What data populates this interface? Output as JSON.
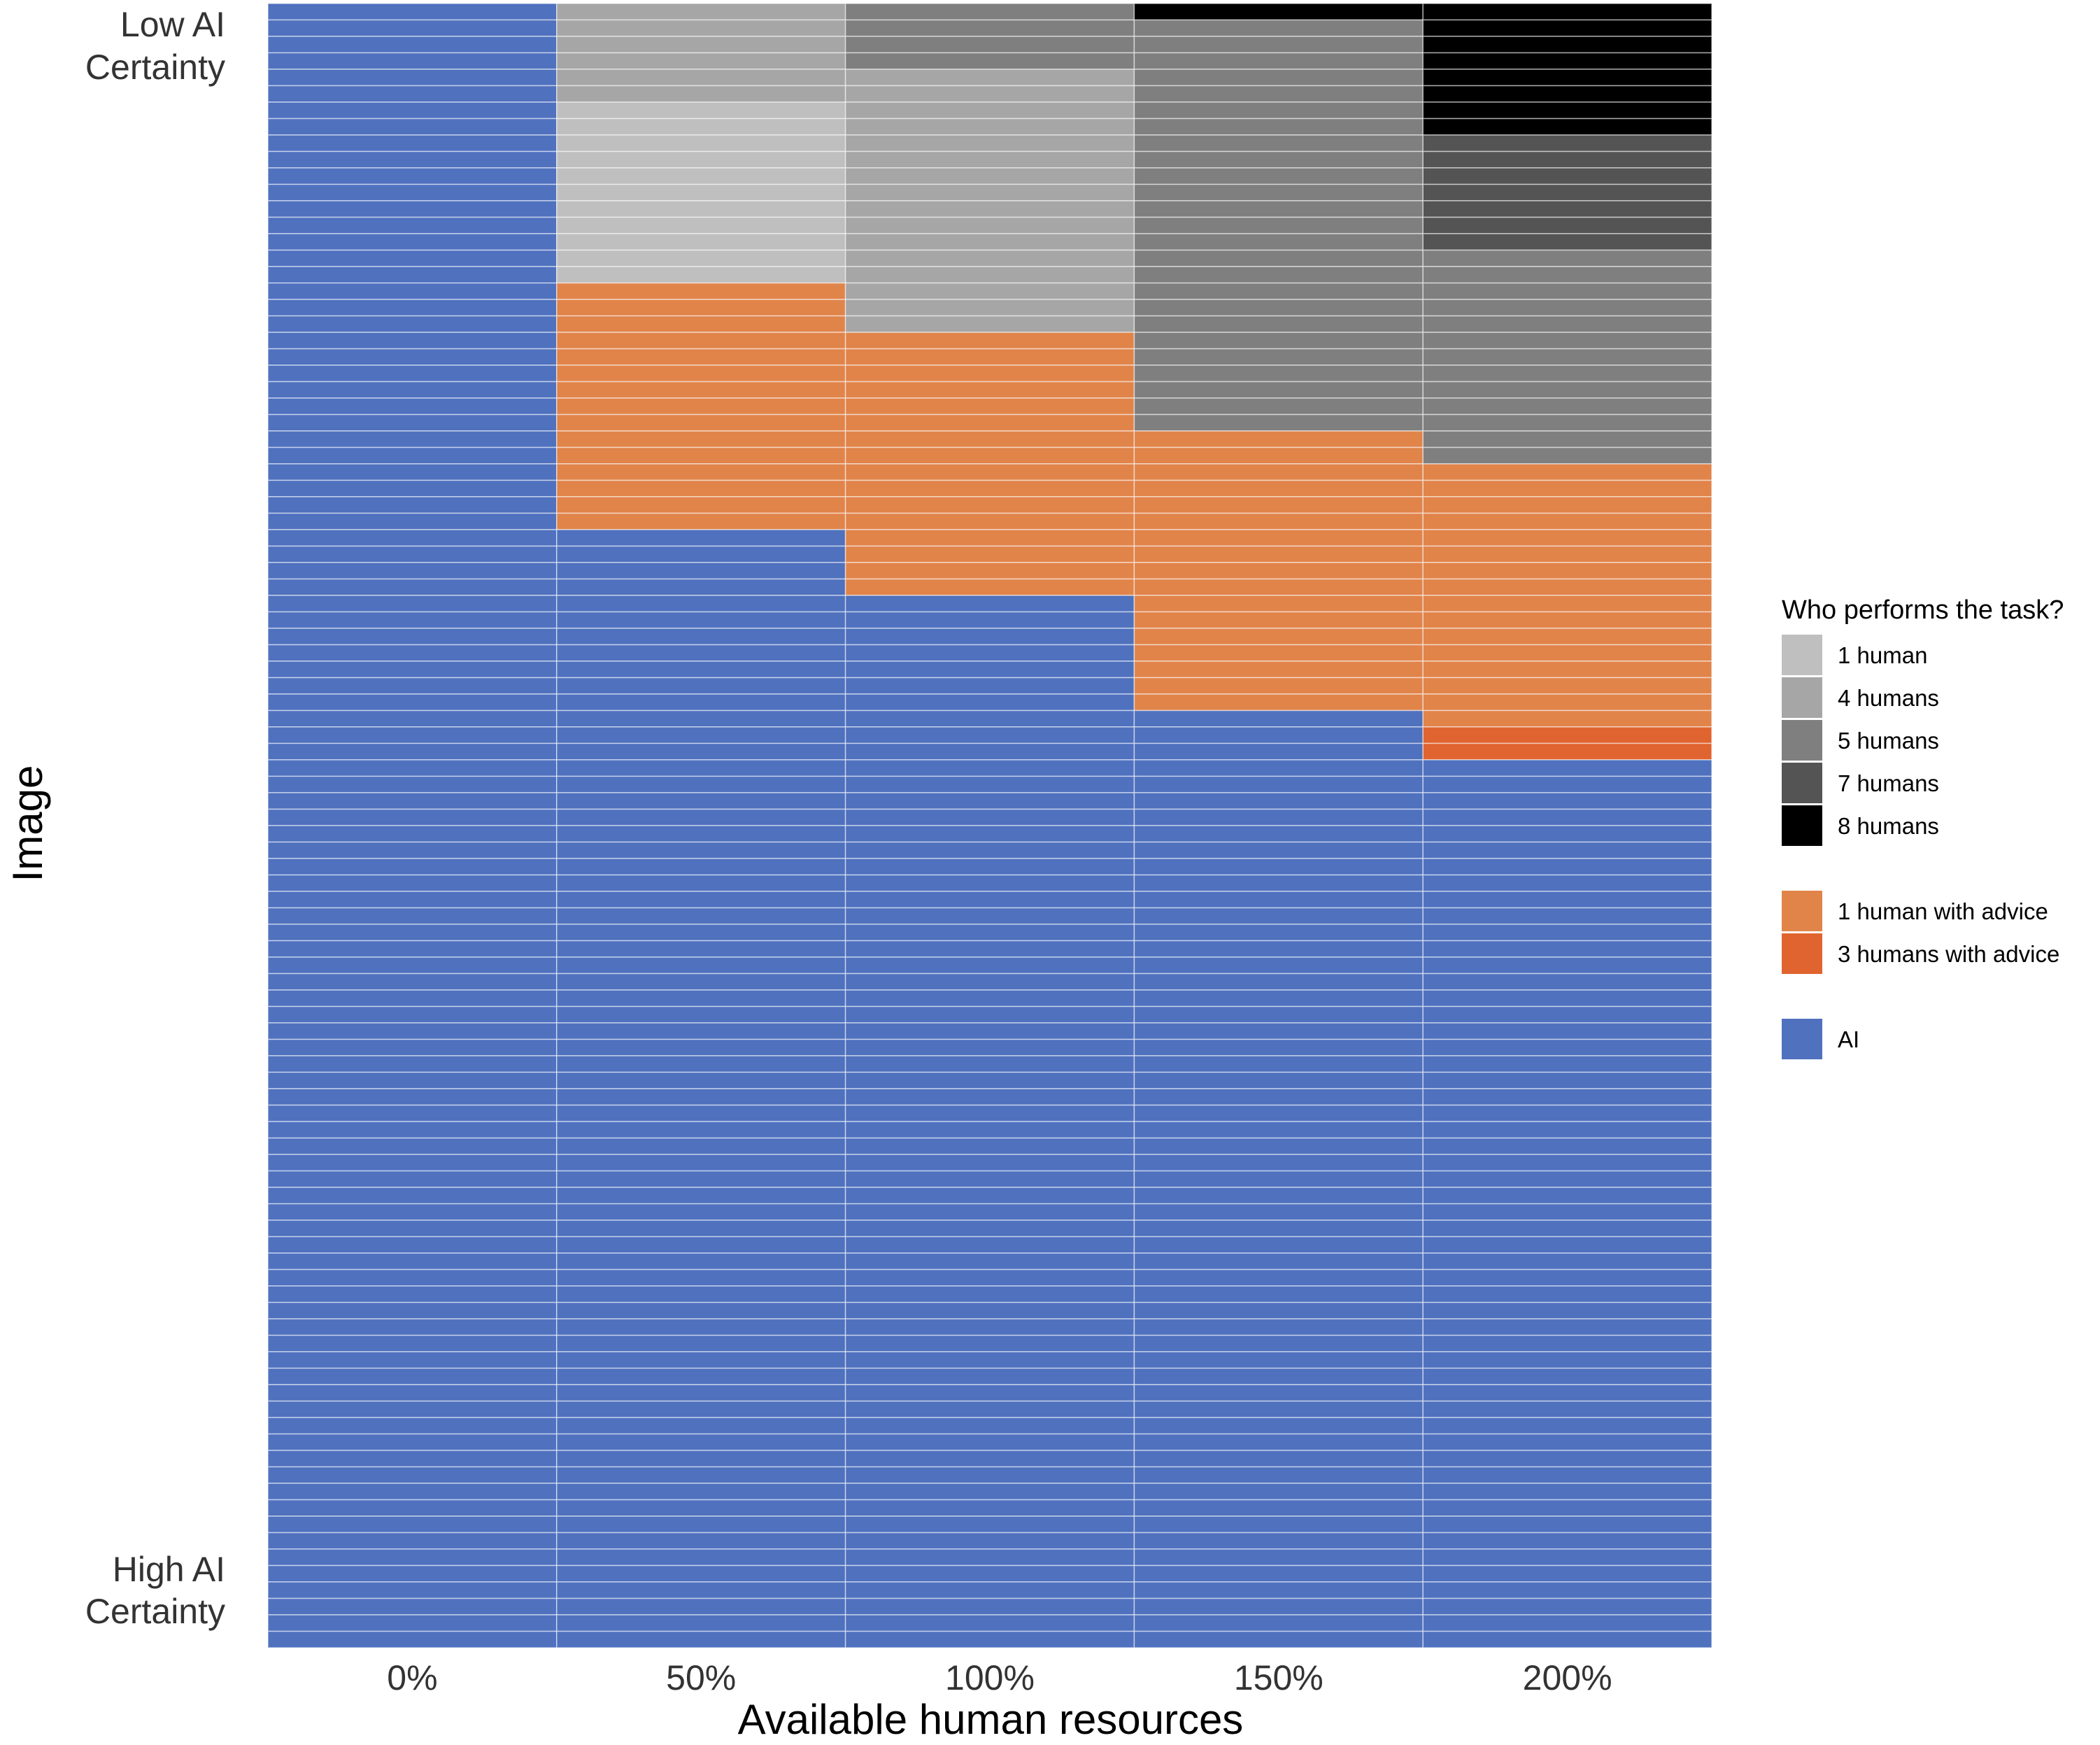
{
  "chart_data": {
    "type": "heatmap",
    "title": "",
    "xlabel": "Available human resources",
    "ylabel": "Image",
    "categories": [
      "0%",
      "50%",
      "100%",
      "150%",
      "200%"
    ],
    "y_tick_labels": {
      "top": [
        "Low AI",
        "Certainty"
      ],
      "bottom": [
        "High AI",
        "Certainty"
      ]
    },
    "row_count": 100,
    "grid": false,
    "legend": {
      "title": "Who performs the task?",
      "placement": "right",
      "groups": [
        [
          {
            "key": "h1",
            "label": "1 human",
            "color": "#BFBFBF"
          },
          {
            "key": "h4",
            "label": "4 humans",
            "color": "#A6A6A6"
          },
          {
            "key": "h5",
            "label": "5 humans",
            "color": "#7F7F7F"
          },
          {
            "key": "h7",
            "label": "7 humans",
            "color": "#545454"
          },
          {
            "key": "h8",
            "label": "8 humans",
            "color": "#000000"
          }
        ],
        [
          {
            "key": "a1",
            "label": "1 human with advice",
            "color": "#E0844A"
          },
          {
            "key": "a3",
            "label": "3 humans with advice",
            "color": "#E0642F"
          }
        ],
        [
          {
            "key": "ai",
            "label": "AI",
            "color": "#4F71BE"
          }
        ]
      ]
    },
    "series": [
      {
        "category": "0%",
        "segments": [
          {
            "key": "ai",
            "from": 1,
            "to": 100
          }
        ]
      },
      {
        "category": "50%",
        "segments": [
          {
            "key": "h4",
            "from": 1,
            "to": 6
          },
          {
            "key": "h1",
            "from": 7,
            "to": 17
          },
          {
            "key": "a1",
            "from": 18,
            "to": 32
          },
          {
            "key": "ai",
            "from": 33,
            "to": 100
          }
        ]
      },
      {
        "category": "100%",
        "segments": [
          {
            "key": "h5",
            "from": 1,
            "to": 4
          },
          {
            "key": "h4",
            "from": 5,
            "to": 20
          },
          {
            "key": "a1",
            "from": 21,
            "to": 36
          },
          {
            "key": "ai",
            "from": 37,
            "to": 100
          }
        ]
      },
      {
        "category": "150%",
        "segments": [
          {
            "key": "h8",
            "from": 1,
            "to": 1
          },
          {
            "key": "h5",
            "from": 2,
            "to": 26
          },
          {
            "key": "a1",
            "from": 27,
            "to": 43
          },
          {
            "key": "ai",
            "from": 44,
            "to": 100
          }
        ]
      },
      {
        "category": "200%",
        "segments": [
          {
            "key": "h8",
            "from": 1,
            "to": 8
          },
          {
            "key": "h7",
            "from": 9,
            "to": 15
          },
          {
            "key": "h5",
            "from": 16,
            "to": 28
          },
          {
            "key": "a1",
            "from": 29,
            "to": 44
          },
          {
            "key": "a3",
            "from": 45,
            "to": 46
          },
          {
            "key": "ai",
            "from": 47,
            "to": 100
          }
        ]
      }
    ]
  }
}
